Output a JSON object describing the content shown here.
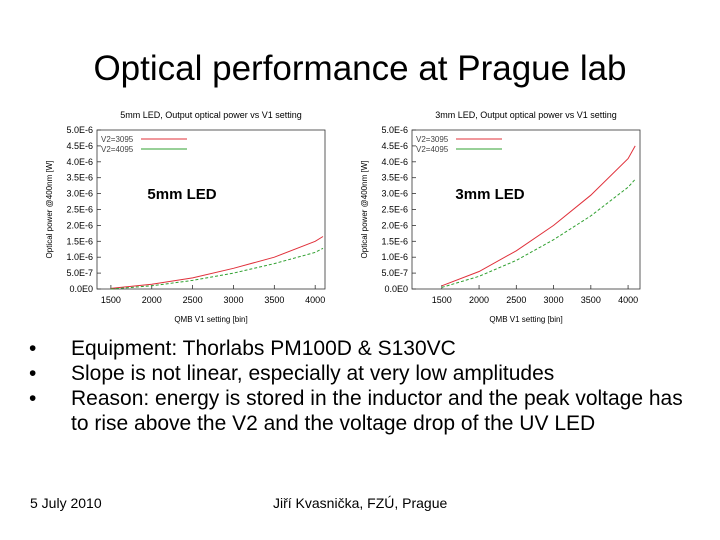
{
  "title": "Optical performance at Prague lab",
  "chart_data": [
    {
      "type": "line",
      "title": "5mm LED, Output optical power vs V1 setting",
      "annotation": "5mm LED",
      "xlabel": "QMB V1 setting [bin]",
      "ylabel": "Optical power @400nm [W]",
      "x": [
        1500,
        2000,
        2500,
        3000,
        3500,
        4000,
        4095
      ],
      "series": [
        {
          "name": "V2=3095",
          "color": "#e0303a",
          "values": [
            2e-08,
            1.5e-07,
            3.5e-07,
            6.5e-07,
            1e-06,
            1.5e-06,
            1.65e-06
          ]
        },
        {
          "name": "V2=4095",
          "color": "#30a030",
          "values": [
            0.0,
            1e-07,
            2.7e-07,
            5e-07,
            8e-07,
            1.15e-06,
            1.28e-06
          ]
        }
      ],
      "xlim": [
        1330,
        4120
      ],
      "xticks": [
        1500,
        2000,
        2500,
        3000,
        3500,
        4000
      ],
      "ylim": [
        0,
        5e-06
      ],
      "yticks": [
        {
          "value": 0,
          "label": "0.0E0"
        },
        {
          "value": 5e-07,
          "label": "5.0E-7"
        },
        {
          "value": 1e-06,
          "label": "1.0E-6"
        },
        {
          "value": 1.5e-06,
          "label": "1.5E-6"
        },
        {
          "value": 2e-06,
          "label": "2.0E-6"
        },
        {
          "value": 2.5e-06,
          "label": "2.5E-6"
        },
        {
          "value": 3e-06,
          "label": "3.0E-6"
        },
        {
          "value": 3.5e-06,
          "label": "3.5E-6"
        },
        {
          "value": 4e-06,
          "label": "4.0E-6"
        },
        {
          "value": 4.5e-06,
          "label": "4.5E-6"
        },
        {
          "value": 5e-06,
          "label": "5.0E-6"
        }
      ],
      "grid": false
    },
    {
      "type": "line",
      "title": "3mm LED, Output optical power vs V1 setting",
      "annotation": "3mm LED",
      "xlabel": "QMB V1 setting [bin]",
      "ylabel": "Optical power @400nm [W]",
      "x": [
        1500,
        2000,
        2500,
        3000,
        3500,
        4000,
        4095
      ],
      "series": [
        {
          "name": "V2=3095",
          "color": "#e0303a",
          "values": [
            1e-07,
            5.5e-07,
            1.2e-06,
            2e-06,
            2.95e-06,
            4.1e-06,
            4.5e-06
          ]
        },
        {
          "name": "V2=4095",
          "color": "#30a030",
          "values": [
            5e-08,
            4e-07,
            9e-07,
            1.55e-06,
            2.3e-06,
            3.2e-06,
            3.45e-06
          ]
        }
      ],
      "xlim": [
        1100,
        4160
      ],
      "xticks": [
        1500,
        2000,
        2500,
        3000,
        3500,
        4000
      ],
      "ylim": [
        0,
        5e-06
      ],
      "yticks": [
        {
          "value": 0,
          "label": "0.0E0"
        },
        {
          "value": 5e-07,
          "label": "5.0E-7"
        },
        {
          "value": 1e-06,
          "label": "1.0E-6"
        },
        {
          "value": 1.5e-06,
          "label": "1.5E-6"
        },
        {
          "value": 2e-06,
          "label": "2.0E-6"
        },
        {
          "value": 2.5e-06,
          "label": "2.5E-6"
        },
        {
          "value": 3e-06,
          "label": "3.0E-6"
        },
        {
          "value": 3.5e-06,
          "label": "3.5E-6"
        },
        {
          "value": 4e-06,
          "label": "4.0E-6"
        },
        {
          "value": 4.5e-06,
          "label": "4.5E-6"
        },
        {
          "value": 5e-06,
          "label": "5.0E-6"
        }
      ],
      "grid": false
    }
  ],
  "bullets": [
    "Equipment: Thorlabs PM100D & S130VC",
    "Slope is not linear, especially at very low amplitudes",
    "Reason: energy is stored in the inductor and the peak voltage has to rise above the V2 and the voltage drop of the UV LED"
  ],
  "footer": {
    "date": "5 July 2010",
    "author": "Jiří Kvasnička, FZÚ, Prague"
  }
}
